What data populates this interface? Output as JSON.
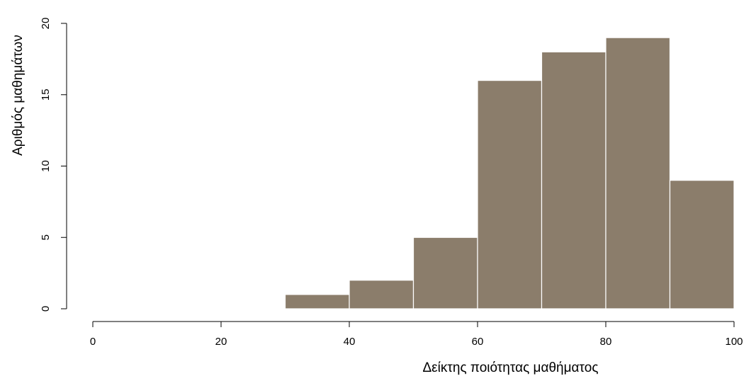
{
  "chart_data": {
    "type": "bar",
    "subtype": "histogram",
    "title": "",
    "xlabel": "Δείκτης ποιότητας μαθήματος",
    "ylabel": "Αριθμός μαθημάτων",
    "bins": [
      {
        "from": 30,
        "to": 40,
        "count": 1
      },
      {
        "from": 40,
        "to": 50,
        "count": 2
      },
      {
        "from": 50,
        "to": 60,
        "count": 5
      },
      {
        "from": 60,
        "to": 70,
        "count": 16
      },
      {
        "from": 70,
        "to": 80,
        "count": 18
      },
      {
        "from": 80,
        "to": 90,
        "count": 19
      },
      {
        "from": 90,
        "to": 100,
        "count": 9
      }
    ],
    "xlim": [
      0,
      100
    ],
    "ylim": [
      0,
      20
    ],
    "x_ticks": [
      0,
      20,
      40,
      60,
      80,
      100
    ],
    "y_ticks": [
      0,
      5,
      10,
      15,
      20
    ],
    "bar_color": "#8b7d6b",
    "bar_edge_color": "#ffffff",
    "grid": false,
    "legend": "none"
  }
}
